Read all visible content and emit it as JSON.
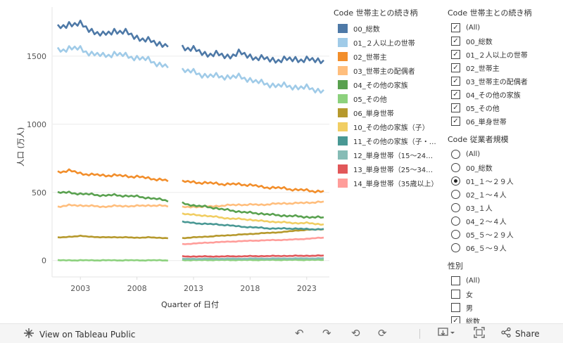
{
  "chart_data": {
    "type": "line",
    "xlabel": "Quarter of 日付",
    "ylabel": "人口 (万人)",
    "xlim": [
      2000.5,
      2025.0
    ],
    "ylim": [
      -120,
      1860
    ],
    "x_ticks": [
      2003,
      2008,
      2013,
      2018,
      2023
    ],
    "y_ticks": [
      0,
      500,
      1000,
      1500
    ],
    "gap": [
      2010.95,
      2011.95
    ],
    "grid": "horizontal",
    "series": [
      {
        "name": "00_総数",
        "color": "#4e79a7",
        "anchors": [
          [
            2001,
            1700
          ],
          [
            2002,
            1740
          ],
          [
            2003,
            1730
          ],
          [
            2004,
            1690
          ],
          [
            2005,
            1650
          ],
          [
            2006,
            1690
          ],
          [
            2007,
            1670
          ],
          [
            2008,
            1640
          ],
          [
            2009,
            1610
          ],
          [
            2010.75,
            1580
          ],
          [
            2012,
            1570
          ],
          [
            2013,
            1545
          ],
          [
            2014,
            1520
          ],
          [
            2015,
            1510
          ],
          [
            2016,
            1500
          ],
          [
            2017,
            1520
          ],
          [
            2018,
            1500
          ],
          [
            2019,
            1480
          ],
          [
            2020,
            1475
          ],
          [
            2021,
            1470
          ],
          [
            2022,
            1480
          ],
          [
            2023,
            1470
          ],
          [
            2024.5,
            1470
          ]
        ]
      },
      {
        "name": "01_２人以上の世帯",
        "color": "#a0cbe8",
        "anchors": [
          [
            2001,
            1540
          ],
          [
            2002,
            1560
          ],
          [
            2003,
            1550
          ],
          [
            2004,
            1520
          ],
          [
            2005,
            1500
          ],
          [
            2006,
            1520
          ],
          [
            2007,
            1500
          ],
          [
            2008,
            1490
          ],
          [
            2009,
            1470
          ],
          [
            2010.75,
            1420
          ],
          [
            2012,
            1400
          ],
          [
            2013,
            1380
          ],
          [
            2014,
            1360
          ],
          [
            2015,
            1350
          ],
          [
            2016,
            1350
          ],
          [
            2017,
            1345
          ],
          [
            2018,
            1330
          ],
          [
            2019,
            1300
          ],
          [
            2020,
            1290
          ],
          [
            2021,
            1280
          ],
          [
            2022,
            1275
          ],
          [
            2023,
            1265
          ],
          [
            2024.5,
            1245
          ]
        ]
      },
      {
        "name": "02_世帯主",
        "color": "#f28e2b",
        "anchors": [
          [
            2001,
            650
          ],
          [
            2002,
            660
          ],
          [
            2003,
            640
          ],
          [
            2004,
            630
          ],
          [
            2005,
            625
          ],
          [
            2006,
            625
          ],
          [
            2007,
            620
          ],
          [
            2008,
            615
          ],
          [
            2009,
            605
          ],
          [
            2010.75,
            585
          ],
          [
            2012,
            580
          ],
          [
            2013,
            575
          ],
          [
            2014,
            570
          ],
          [
            2015,
            565
          ],
          [
            2016,
            560
          ],
          [
            2017,
            560
          ],
          [
            2018,
            555
          ],
          [
            2019,
            540
          ],
          [
            2020,
            535
          ],
          [
            2021,
            530
          ],
          [
            2022,
            520
          ],
          [
            2023,
            515
          ],
          [
            2024.5,
            505
          ]
        ]
      },
      {
        "name": "03_世帯主の配偶者",
        "color": "#ffbe7d",
        "anchors": [
          [
            2001,
            395
          ],
          [
            2002,
            405
          ],
          [
            2003,
            405
          ],
          [
            2004,
            400
          ],
          [
            2005,
            395
          ],
          [
            2006,
            400
          ],
          [
            2007,
            400
          ],
          [
            2008,
            400
          ],
          [
            2009,
            405
          ],
          [
            2010.75,
            400
          ],
          [
            2012,
            390
          ],
          [
            2013,
            395
          ],
          [
            2014,
            395
          ],
          [
            2015,
            400
          ],
          [
            2016,
            405
          ],
          [
            2017,
            410
          ],
          [
            2018,
            410
          ],
          [
            2019,
            410
          ],
          [
            2020,
            415
          ],
          [
            2021,
            420
          ],
          [
            2022,
            420
          ],
          [
            2023,
            425
          ],
          [
            2024.5,
            430
          ]
        ]
      },
      {
        "name": "04_その他の家族",
        "color": "#59a14f",
        "anchors": [
          [
            2001,
            500
          ],
          [
            2002,
            498
          ],
          [
            2003,
            490
          ],
          [
            2004,
            485
          ],
          [
            2005,
            478
          ],
          [
            2006,
            480
          ],
          [
            2007,
            475
          ],
          [
            2008,
            470
          ],
          [
            2009,
            460
          ],
          [
            2010.75,
            440
          ],
          [
            2012,
            420
          ],
          [
            2013,
            405
          ],
          [
            2014,
            395
          ],
          [
            2015,
            385
          ],
          [
            2016,
            370
          ],
          [
            2017,
            360
          ],
          [
            2018,
            350
          ],
          [
            2019,
            345
          ],
          [
            2020,
            335
          ],
          [
            2021,
            330
          ],
          [
            2022,
            325
          ],
          [
            2023,
            320
          ],
          [
            2024.5,
            315
          ]
        ]
      },
      {
        "name": "05_その他",
        "color": "#8cd17d",
        "anchors": [
          [
            2001,
            2
          ],
          [
            2003,
            2
          ],
          [
            2006,
            2
          ],
          [
            2008,
            2
          ],
          [
            2010.75,
            2
          ],
          [
            2012,
            3
          ],
          [
            2015,
            4
          ],
          [
            2018,
            4
          ],
          [
            2021,
            5
          ],
          [
            2024.5,
            5
          ]
        ]
      },
      {
        "name": "06_単身世帯",
        "color": "#b6992d",
        "anchors": [
          [
            2001,
            168
          ],
          [
            2002,
            175
          ],
          [
            2003,
            180
          ],
          [
            2004,
            175
          ],
          [
            2005,
            170
          ],
          [
            2006,
            172
          ],
          [
            2007,
            170
          ],
          [
            2008,
            168
          ],
          [
            2009,
            170
          ],
          [
            2010.75,
            165
          ],
          [
            2012,
            165
          ],
          [
            2013,
            170
          ],
          [
            2014,
            175
          ],
          [
            2015,
            180
          ],
          [
            2016,
            185
          ],
          [
            2017,
            190
          ],
          [
            2018,
            195
          ],
          [
            2019,
            200
          ],
          [
            2020,
            205
          ],
          [
            2021,
            210
          ],
          [
            2022,
            220
          ],
          [
            2023,
            225
          ],
          [
            2024.5,
            230
          ]
        ]
      },
      {
        "name": "10_その他の家族（子）",
        "color": "#f1ce63",
        "anchors": [
          [
            2012,
            345
          ],
          [
            2013,
            335
          ],
          [
            2014,
            330
          ],
          [
            2015,
            320
          ],
          [
            2016,
            310
          ],
          [
            2017,
            305
          ],
          [
            2018,
            300
          ],
          [
            2019,
            290
          ],
          [
            2020,
            285
          ],
          [
            2021,
            280
          ],
          [
            2022,
            275
          ],
          [
            2023,
            275
          ],
          [
            2024.5,
            265
          ]
        ]
      },
      {
        "name": "11_その他の家族（子・…",
        "color": "#499894",
        "anchors": [
          [
            2012,
            285
          ],
          [
            2013,
            275
          ],
          [
            2014,
            270
          ],
          [
            2015,
            265
          ],
          [
            2016,
            260
          ],
          [
            2017,
            250
          ],
          [
            2018,
            245
          ],
          [
            2019,
            240
          ],
          [
            2020,
            235
          ],
          [
            2021,
            235
          ],
          [
            2022,
            235
          ],
          [
            2023,
            230
          ],
          [
            2024.5,
            230
          ]
        ]
      },
      {
        "name": "12_単身世帯（15〜24…",
        "color": "#86bcb6",
        "anchors": [
          [
            2012,
            12
          ],
          [
            2015,
            13
          ],
          [
            2018,
            14
          ],
          [
            2021,
            15
          ],
          [
            2024.5,
            16
          ]
        ]
      },
      {
        "name": "13_単身世帯（25〜34…",
        "color": "#e15759",
        "anchors": [
          [
            2012,
            30
          ],
          [
            2015,
            30
          ],
          [
            2018,
            32
          ],
          [
            2021,
            34
          ],
          [
            2024.5,
            36
          ]
        ]
      },
      {
        "name": "14_単身世帯（35歳以上）",
        "color": "#ff9d9a",
        "anchors": [
          [
            2012,
            120
          ],
          [
            2013,
            125
          ],
          [
            2014,
            130
          ],
          [
            2015,
            135
          ],
          [
            2016,
            138
          ],
          [
            2017,
            142
          ],
          [
            2018,
            145
          ],
          [
            2019,
            148
          ],
          [
            2020,
            150
          ],
          [
            2021,
            152
          ],
          [
            2022,
            155
          ],
          [
            2023,
            160
          ],
          [
            2024.5,
            168
          ]
        ]
      }
    ]
  },
  "legend": {
    "title": "Code 世帯主との続き柄"
  },
  "filters": {
    "relation": {
      "title": "Code 世帯主との続き柄",
      "items": [
        {
          "label": "(All)",
          "checked": true
        },
        {
          "label": "00_総数",
          "checked": true
        },
        {
          "label": "01_２人以上の世帯",
          "checked": true
        },
        {
          "label": "02_世帯主",
          "checked": true
        },
        {
          "label": "03_世帯主の配偶者",
          "checked": true
        },
        {
          "label": "04_その他の家族",
          "checked": true
        },
        {
          "label": "05_その他",
          "checked": true
        },
        {
          "label": "06_単身世帯",
          "checked": true
        }
      ]
    },
    "size": {
      "title": "Code 従業者規模",
      "items": [
        {
          "label": "(All)",
          "selected": false
        },
        {
          "label": "00_総数",
          "selected": false
        },
        {
          "label": "01_１〜２９人",
          "selected": true
        },
        {
          "label": "02_１〜４人",
          "selected": false
        },
        {
          "label": "03_１人",
          "selected": false
        },
        {
          "label": "04_２〜４人",
          "selected": false
        },
        {
          "label": "05_５〜２９人",
          "selected": false
        },
        {
          "label": "06_５〜９人",
          "selected": false
        }
      ]
    },
    "gender": {
      "title": "性別",
      "items": [
        {
          "label": "(All)",
          "checked": false
        },
        {
          "label": "女",
          "checked": false
        },
        {
          "label": "男",
          "checked": false
        },
        {
          "label": "総数",
          "checked": true
        }
      ]
    }
  },
  "toolbar": {
    "view_label": "View on Tableau Public",
    "share_label": "Share"
  },
  "icons": [
    "tableau-logo-icon",
    "undo-icon",
    "redo-icon",
    "revert-icon",
    "refresh-icon",
    "download-icon",
    "fullscreen-icon",
    "share-icon"
  ]
}
